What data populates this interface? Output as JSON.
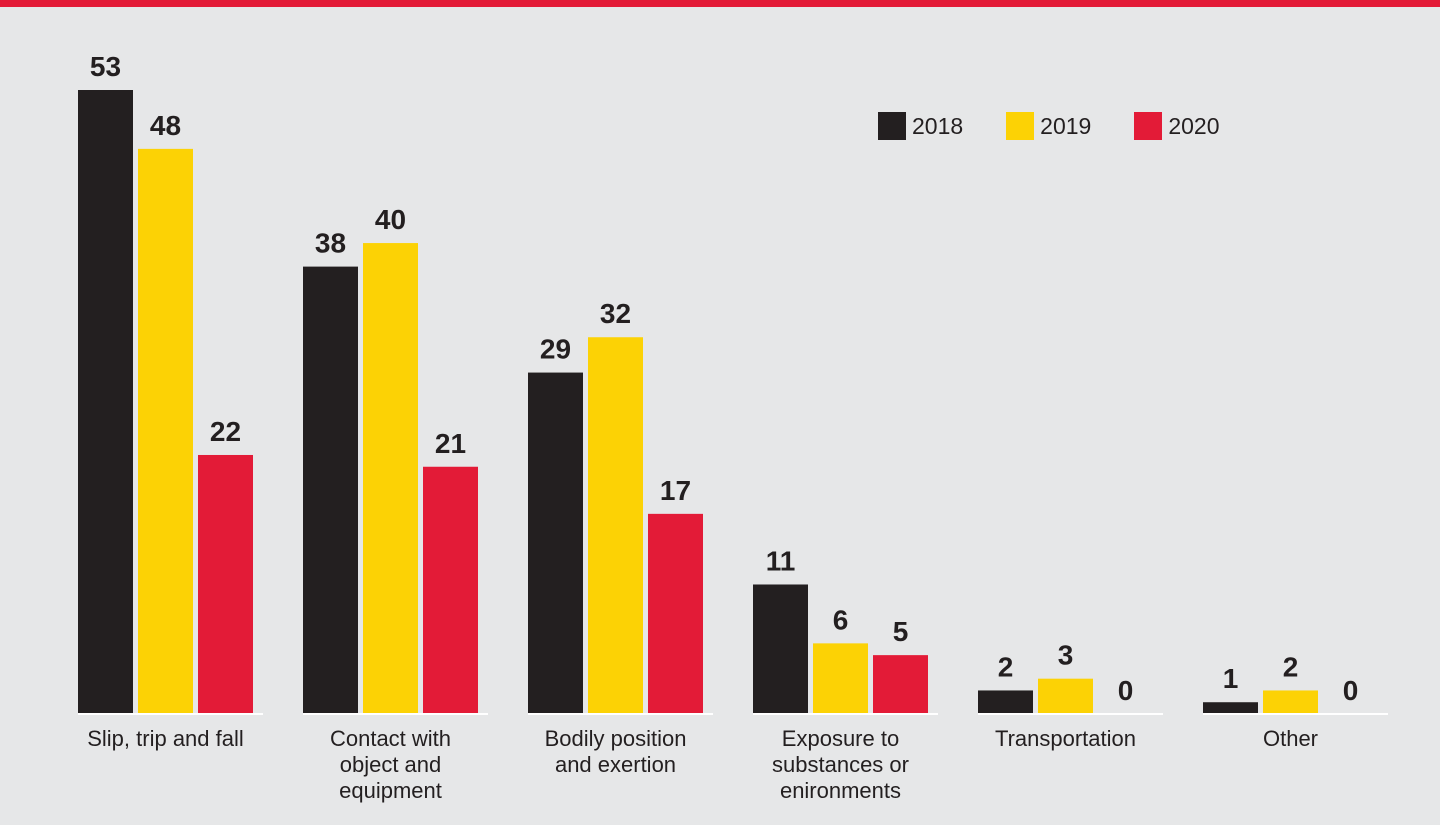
{
  "colors": {
    "background": "#e6e7e8",
    "accent_rule": "#e31b37",
    "axis": "#ffffff",
    "text": "#231f20"
  },
  "chart_data": {
    "type": "bar",
    "categories": [
      [
        "Slip, trip and fall"
      ],
      [
        "Contact with",
        "object and",
        "equipment"
      ],
      [
        "Bodily position",
        "and exertion"
      ],
      [
        "Exposure to",
        "substances or",
        "enironments"
      ],
      [
        "Transportation"
      ],
      [
        "Other"
      ]
    ],
    "series": [
      {
        "name": "2018",
        "color": "#231f20",
        "values": [
          53,
          38,
          29,
          11,
          2,
          1
        ]
      },
      {
        "name": "2019",
        "color": "#fcd205",
        "values": [
          48,
          40,
          32,
          6,
          3,
          2
        ]
      },
      {
        "name": "2020",
        "color": "#e31b37",
        "values": [
          22,
          21,
          17,
          5,
          0,
          0
        ]
      }
    ],
    "ylim": [
      0,
      53
    ],
    "grid": false,
    "legend_position": "top-right",
    "data_labels": true
  }
}
